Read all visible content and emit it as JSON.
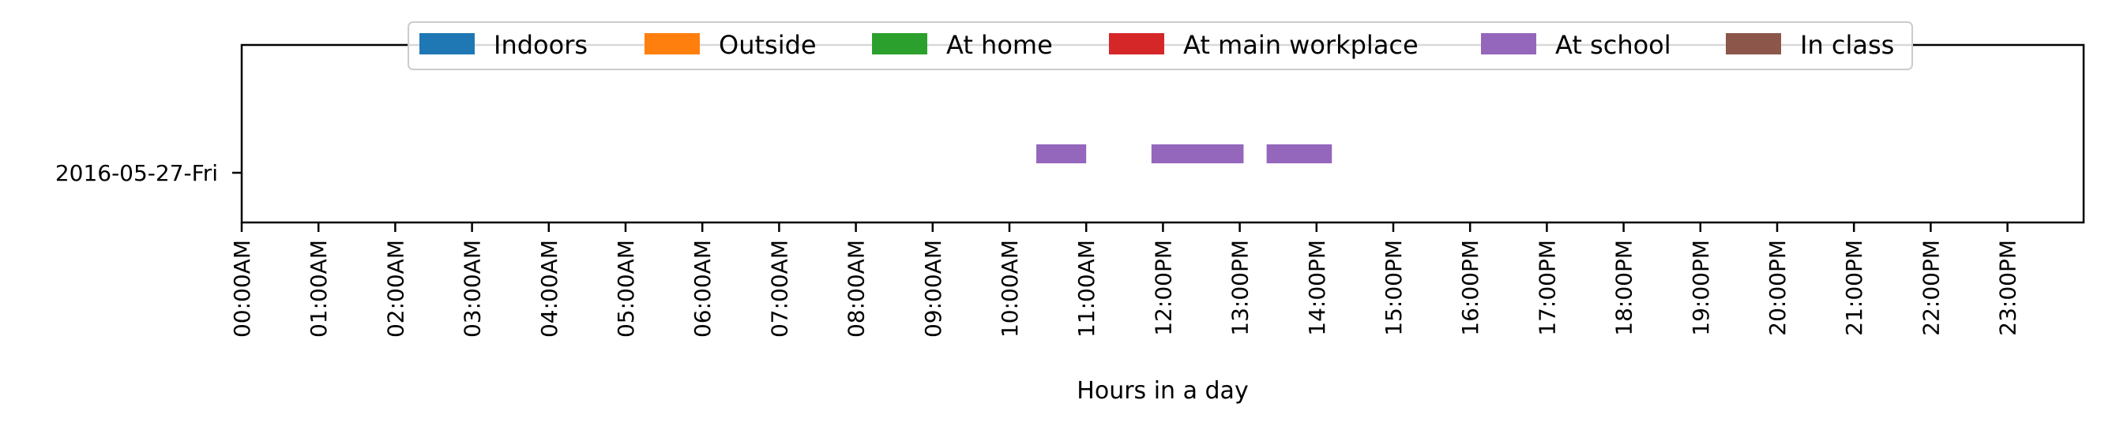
{
  "chart_data": {
    "type": "bar",
    "orientation": "horizontal-timeline",
    "xlabel": "Hours in a day",
    "ylabel": "",
    "xlim": [
      0,
      24
    ],
    "x_ticks": [
      "00:00AM",
      "01:00AM",
      "02:00AM",
      "03:00AM",
      "04:00AM",
      "05:00AM",
      "06:00AM",
      "07:00AM",
      "08:00AM",
      "09:00AM",
      "10:00AM",
      "11:00AM",
      "12:00PM",
      "13:00PM",
      "14:00PM",
      "15:00PM",
      "16:00PM",
      "17:00PM",
      "18:00PM",
      "19:00PM",
      "20:00PM",
      "21:00PM",
      "22:00PM",
      "23:00PM"
    ],
    "categories": [
      "2016-05-27-Fri"
    ],
    "legend_position": "top-center",
    "grid": false,
    "series": [
      {
        "name": "Indoors",
        "color": "#1f77b4",
        "intervals": []
      },
      {
        "name": "Outside",
        "color": "#ff7f0e",
        "intervals": []
      },
      {
        "name": "At home",
        "color": "#2ca02c",
        "intervals": []
      },
      {
        "name": "At main workplace",
        "color": "#d62728",
        "intervals": []
      },
      {
        "name": "At school",
        "color": "#9467bd",
        "intervals": [
          {
            "day": "2016-05-27-Fri",
            "start": 10.35,
            "end": 11.0
          },
          {
            "day": "2016-05-27-Fri",
            "start": 11.85,
            "end": 13.05
          },
          {
            "day": "2016-05-27-Fri",
            "start": 13.35,
            "end": 14.2
          }
        ]
      },
      {
        "name": "In class",
        "color": "#8c564b",
        "intervals": []
      }
    ]
  }
}
